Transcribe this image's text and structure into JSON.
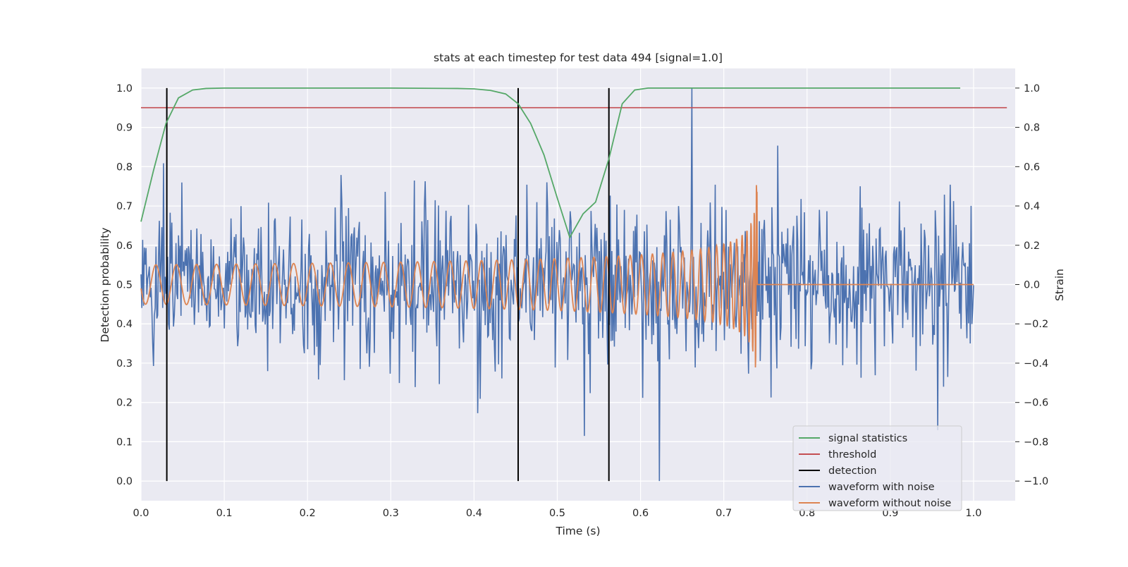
{
  "chart_data": {
    "type": "line",
    "title": "stats at each timestep for test data 494 [signal=1.0]",
    "xlabel": "Time (s)",
    "ylabel_left": "Detection probability",
    "ylabel_right": "Strain",
    "xlim": [
      0.0,
      1.05
    ],
    "ylim_left": [
      -0.05,
      1.05
    ],
    "ylim_right": [
      -1.1,
      1.1
    ],
    "xticks": [
      "0.0",
      "0.1",
      "0.2",
      "0.3",
      "0.4",
      "0.5",
      "0.6",
      "0.7",
      "0.8",
      "0.9",
      "1.0"
    ],
    "yticks_left": [
      "0.0",
      "0.1",
      "0.2",
      "0.3",
      "0.4",
      "0.5",
      "0.6",
      "0.7",
      "0.8",
      "0.9",
      "1.0"
    ],
    "yticks_right": [
      "−1.0",
      "−0.8",
      "−0.6",
      "−0.4",
      "−0.2",
      "0.0",
      "0.2",
      "0.4",
      "0.6",
      "0.8",
      "1.0"
    ],
    "grid": true,
    "legend_position": "lower-right",
    "colors": {
      "signal_statistics": "#55a868",
      "threshold": "#c44e52",
      "detection": "#000000",
      "waveform_with_noise": "#4c72b0",
      "waveform_without_noise": "#dd8452",
      "plot_background": "#eaeaf2",
      "grid": "#ffffff"
    },
    "series": [
      {
        "name": "signal statistics",
        "axis": "left",
        "x": [
          0.0,
          0.015,
          0.03,
          0.045,
          0.062,
          0.078,
          0.1,
          0.2,
          0.3,
          0.38,
          0.4,
          0.42,
          0.438,
          0.453,
          0.468,
          0.484,
          0.5,
          0.515,
          0.531,
          0.546,
          0.562,
          0.578,
          0.593,
          0.609,
          0.7,
          0.8,
          0.9,
          0.984
        ],
        "y": [
          0.66,
          0.79,
          0.91,
          0.975,
          0.995,
          0.999,
          1.0,
          1.0,
          1.0,
          0.999,
          0.998,
          0.994,
          0.985,
          0.96,
          0.91,
          0.83,
          0.72,
          0.62,
          0.68,
          0.71,
          0.82,
          0.96,
          0.995,
          1.0,
          1.0,
          1.0,
          1.0,
          1.0
        ]
      },
      {
        "name": "threshold",
        "axis": "left",
        "x": [
          0.0,
          1.04
        ],
        "y": [
          0.95,
          0.95
        ]
      },
      {
        "name": "detection",
        "axis": "left",
        "x": [
          0.031,
          0.453,
          0.562
        ],
        "y_range": [
          0.0,
          1.0
        ]
      },
      {
        "name": "waveform with noise",
        "axis": "right",
        "x_range": [
          0.0,
          1.0
        ],
        "samples": 1000,
        "description_of_values": "Gaussian-like noise around 0 with std ~0.2 strain, extremes near +1.0 (t≈0.66) and −1.0 (t≈0.62)"
      },
      {
        "name": "waveform without noise",
        "axis": "right",
        "x_range": [
          0.0,
          1.0
        ],
        "chirp": {
          "start_amplitude": 0.1,
          "end_time": 0.74,
          "frequency_start_hz": 40,
          "merger_amplitude": 0.55,
          "after_merger": 0.0
        }
      }
    ],
    "legend": [
      "signal statistics",
      "threshold",
      "detection",
      "waveform with noise",
      "waveform without noise"
    ]
  }
}
